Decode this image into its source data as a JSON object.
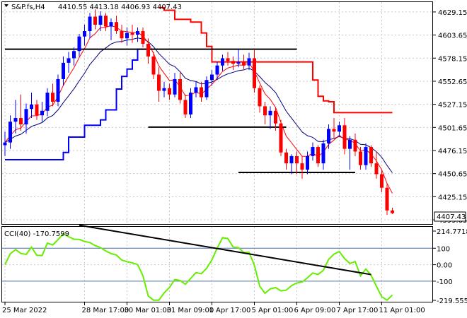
{
  "header": {
    "symbol": "S&P.fs,H4",
    "ohlc": "4410.55 4413.18 4406.93 4407.43"
  },
  "colors": {
    "background": "#ffffff",
    "bull_candle": "#0000ff",
    "bear_candle": "#ff0000",
    "fast_ma": "#ff0000",
    "slow_ma": "#000080",
    "blue_stop": "#0000ff",
    "red_stop": "#ff0000",
    "cci": "#66ee00",
    "levels": "#000000",
    "price_tag_bg": "#ffffff",
    "grid": "#c8c8c8"
  },
  "chart_data": [
    {
      "type": "candlestick",
      "y_axis": {
        "ticks": [
          4629.15,
          4603.65,
          4578.15,
          4552.65,
          4527.15,
          4501.65,
          4476.15,
          4450.65,
          4425.15,
          4399.65
        ],
        "min": 4395,
        "max": 4640,
        "current_price": "4407.43"
      },
      "x_axis": {
        "labels": [
          "25 Mar 2022",
          "28 Mar 17:00",
          "30 Mar 01:00",
          "31 Mar 09:00",
          "1 Apr 17:00",
          "5 Apr 01:00",
          "6 Apr 09:00",
          "7 Apr 17:00",
          "11 Apr 01:00"
        ],
        "label_bars": [
          0,
          15,
          23,
          31,
          39,
          47,
          55,
          63,
          71
        ]
      },
      "candles": [
        [
          4482,
          4497,
          4470,
          4485
        ],
        [
          4485,
          4515,
          4478,
          4508
        ],
        [
          4508,
          4532,
          4495,
          4512
        ],
        [
          4512,
          4538,
          4498,
          4505
        ],
        [
          4505,
          4528,
          4495,
          4522
        ],
        [
          4522,
          4540,
          4512,
          4527
        ],
        [
          4527,
          4532,
          4510,
          4515
        ],
        [
          4515,
          4530,
          4508,
          4520
        ],
        [
          4520,
          4545,
          4514,
          4540
        ],
        [
          4540,
          4550,
          4525,
          4530
        ],
        [
          4530,
          4560,
          4525,
          4555
        ],
        [
          4555,
          4580,
          4548,
          4573
        ],
        [
          4573,
          4585,
          4562,
          4578
        ],
        [
          4578,
          4590,
          4570,
          4586
        ],
        [
          4586,
          4605,
          4580,
          4602
        ],
        [
          4602,
          4615,
          4592,
          4608
        ],
        [
          4608,
          4628,
          4600,
          4624
        ],
        [
          4624,
          4632,
          4610,
          4615
        ],
        [
          4615,
          4630,
          4608,
          4625
        ],
        [
          4625,
          4628,
          4608,
          4613
        ],
        [
          4613,
          4622,
          4598,
          4618
        ],
        [
          4618,
          4625,
          4605,
          4608
        ],
        [
          4608,
          4615,
          4595,
          4600
        ],
        [
          4600,
          4612,
          4592,
          4606
        ],
        [
          4606,
          4615,
          4595,
          4604
        ],
        [
          4604,
          4612,
          4596,
          4608
        ],
        [
          4608,
          4612,
          4590,
          4594
        ],
        [
          4594,
          4600,
          4572,
          4580
        ],
        [
          4580,
          4585,
          4555,
          4560
        ],
        [
          4560,
          4568,
          4530,
          4542
        ],
        [
          4542,
          4552,
          4535,
          4545
        ],
        [
          4545,
          4550,
          4532,
          4538
        ],
        [
          4538,
          4562,
          4535,
          4555
        ],
        [
          4555,
          4562,
          4528,
          4532
        ],
        [
          4532,
          4538,
          4512,
          4516
        ],
        [
          4516,
          4545,
          4512,
          4540
        ],
        [
          4540,
          4552,
          4535,
          4546
        ],
        [
          4546,
          4552,
          4530,
          4535
        ],
        [
          4535,
          4558,
          4532,
          4554
        ],
        [
          4554,
          4565,
          4548,
          4560
        ],
        [
          4560,
          4574,
          4555,
          4570
        ],
        [
          4570,
          4582,
          4564,
          4578
        ],
        [
          4578,
          4585,
          4570,
          4575
        ],
        [
          4575,
          4580,
          4565,
          4572
        ],
        [
          4572,
          4588,
          4568,
          4574
        ],
        [
          4574,
          4582,
          4566,
          4570
        ],
        [
          4570,
          4584,
          4565,
          4578
        ],
        [
          4578,
          4588,
          4540,
          4545
        ],
        [
          4545,
          4548,
          4518,
          4525
        ],
        [
          4525,
          4530,
          4505,
          4515
        ],
        [
          4515,
          4525,
          4500,
          4520
        ],
        [
          4520,
          4524,
          4498,
          4506
        ],
        [
          4506,
          4510,
          4470,
          4474
        ],
        [
          4474,
          4478,
          4455,
          4462
        ],
        [
          4462,
          4472,
          4450,
          4470
        ],
        [
          4470,
          4475,
          4450,
          4462
        ],
        [
          4462,
          4470,
          4445,
          4455
        ],
        [
          4455,
          4475,
          4450,
          4470
        ],
        [
          4470,
          4485,
          4465,
          4480
        ],
        [
          4480,
          4482,
          4458,
          4462
        ],
        [
          4462,
          4488,
          4455,
          4484
        ],
        [
          4484,
          4505,
          4478,
          4500
        ],
        [
          4500,
          4512,
          4490,
          4497
        ],
        [
          4497,
          4508,
          4492,
          4504
        ],
        [
          4504,
          4512,
          4472,
          4478
        ],
        [
          4478,
          4492,
          4455,
          4488
        ],
        [
          4488,
          4495,
          4470,
          4475
        ],
        [
          4475,
          4480,
          4455,
          4460
        ],
        [
          4460,
          4484,
          4455,
          4480
        ],
        [
          4480,
          4482,
          4458,
          4462
        ],
        [
          4462,
          4475,
          4445,
          4450
        ],
        [
          4450,
          4455,
          4430,
          4435
        ],
        [
          4435,
          4440,
          4405,
          4410
        ],
        [
          4410,
          4413,
          4406,
          4407
        ]
      ],
      "levels": [
        {
          "price": 4588,
          "from_bar": 0,
          "to_bar": 55
        },
        {
          "price": 4502,
          "from_bar": 27,
          "to_bar": 53
        },
        {
          "price": 4452,
          "from_bar": 44,
          "to_bar": 66
        }
      ]
    },
    {
      "type": "line",
      "title": "CCI(40) -170.7599",
      "y_axis": {
        "tick_labels": [
          "214.7718",
          "100",
          "0.00",
          "-100",
          "-219.555"
        ],
        "tick_values": [
          214.77,
          100,
          0,
          -100,
          -219.56
        ],
        "min": -225,
        "max": 230
      },
      "trendline": {
        "from": [
          14,
          240
        ],
        "to": [
          69,
          -60
        ]
      }
    }
  ]
}
